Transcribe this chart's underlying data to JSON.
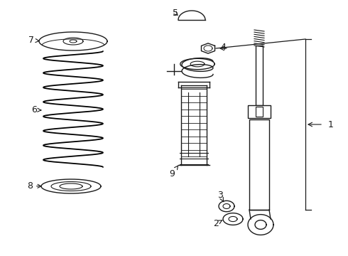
{
  "bg_color": "#ffffff",
  "line_color": "#1a1a1a",
  "line_width": 1.0,
  "fig_width": 4.9,
  "fig_height": 3.6,
  "dpi": 100,
  "xlim": [
    0,
    490
  ],
  "ylim": [
    0,
    360
  ]
}
